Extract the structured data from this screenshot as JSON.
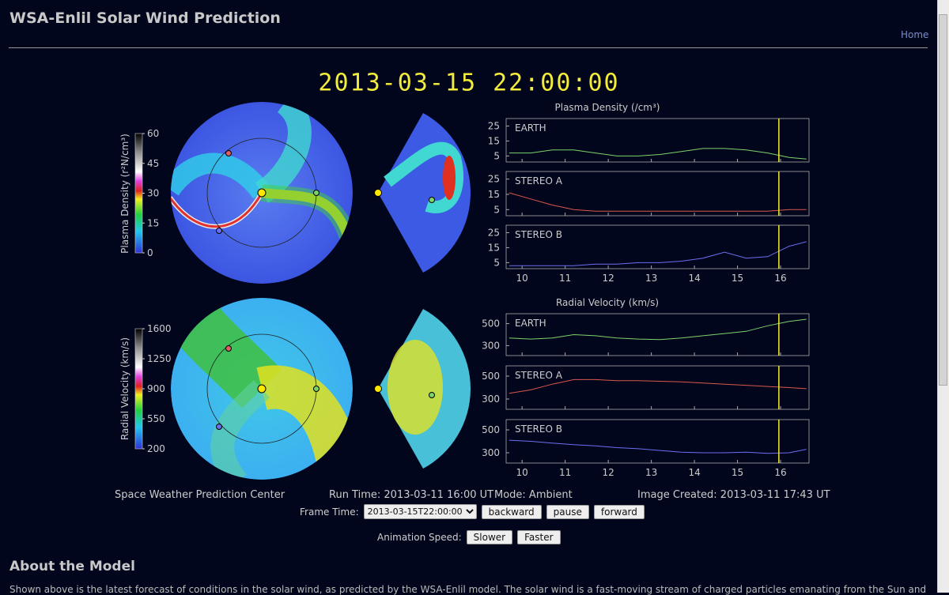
{
  "header": {
    "title": "WSA-Enlil Solar Wind Prediction",
    "nav": "Home"
  },
  "figure": {
    "timestamp": "2013-03-15 22:00:00",
    "density_colorbar": {
      "label": "Plasma Density (r²N/cm³)",
      "ticks": [
        0,
        15,
        30,
        45,
        60
      ]
    },
    "velocity_colorbar": {
      "label": "Radial Velocity (km/s)",
      "ticks": [
        200,
        550,
        900,
        1250,
        1600
      ]
    },
    "time_axis": {
      "x": [
        9.7,
        10.2,
        10.7,
        11.2,
        11.7,
        12.2,
        12.7,
        13.2,
        13.7,
        14.2,
        14.7,
        15.2,
        15.7,
        16.2,
        16.6
      ],
      "xlim": [
        9.63,
        16.66
      ],
      "xticks": [
        10,
        11,
        12,
        13,
        14,
        15,
        16
      ],
      "marker": 15.96
    },
    "density_plots": {
      "title": "Plasma Density (/cm³)",
      "panels": [
        {
          "name": "EARTH",
          "color": "#7bd36b",
          "ylim": [
            1,
            30
          ],
          "yticks": [
            5,
            15,
            25
          ],
          "values": [
            7,
            7,
            9,
            9,
            7,
            5,
            5,
            6,
            8,
            10,
            10,
            9,
            7,
            4,
            3
          ]
        },
        {
          "name": "STEREO A",
          "color": "#d9584e",
          "ylim": [
            1,
            30
          ],
          "yticks": [
            5,
            15,
            25
          ],
          "values": [
            16,
            12,
            8,
            5,
            4,
            4,
            4,
            4,
            4,
            4,
            4,
            4,
            4,
            5,
            5
          ]
        },
        {
          "name": "STEREO B",
          "color": "#6a6ef0",
          "ylim": [
            1,
            30
          ],
          "yticks": [
            5,
            15,
            25
          ],
          "values": [
            3,
            3,
            3,
            3,
            4,
            4,
            5,
            5,
            6,
            8,
            12,
            8,
            9,
            16,
            19
          ]
        }
      ]
    },
    "velocity_plots": {
      "title": "Radial Velocity (km/s)",
      "panels": [
        {
          "name": "EARTH",
          "color": "#7bd36b",
          "ylim": [
            210,
            590
          ],
          "yticks": [
            300,
            500
          ],
          "values": [
            370,
            360,
            370,
            400,
            390,
            370,
            360,
            355,
            370,
            390,
            410,
            430,
            480,
            520,
            540
          ]
        },
        {
          "name": "STEREO A",
          "color": "#d9584e",
          "ylim": [
            210,
            590
          ],
          "yticks": [
            300,
            500
          ],
          "values": [
            350,
            380,
            430,
            470,
            470,
            460,
            460,
            455,
            450,
            440,
            430,
            420,
            410,
            400,
            390
          ]
        },
        {
          "name": "STEREO B",
          "color": "#6a6ef0",
          "ylim": [
            210,
            590
          ],
          "yticks": [
            300,
            500
          ],
          "values": [
            410,
            400,
            385,
            370,
            360,
            345,
            335,
            320,
            305,
            300,
            300,
            305,
            295,
            300,
            330
          ]
        }
      ]
    },
    "footer": {
      "center": "Space Weather Prediction Center",
      "run_time": "Run Time: 2013-03-11 16:00 UT",
      "mode": "Mode: Ambient",
      "created": "Image Created: 2013-03-11 17:43 UT"
    }
  },
  "controls": {
    "frame_label": "Frame Time:",
    "frame_value": "2013-03-15T22:00:00",
    "buttons": [
      "backward",
      "pause",
      "forward"
    ],
    "speed_label": "Animation Speed:",
    "speed_buttons": [
      "Slower",
      "Faster"
    ]
  },
  "about": {
    "heading": "About the Model",
    "text": "Shown above is the latest forecast of conditions in the solar wind, as predicted by the WSA-Enlil model. The solar wind is a fast-moving stream of charged particles emanating from the Sun and"
  }
}
